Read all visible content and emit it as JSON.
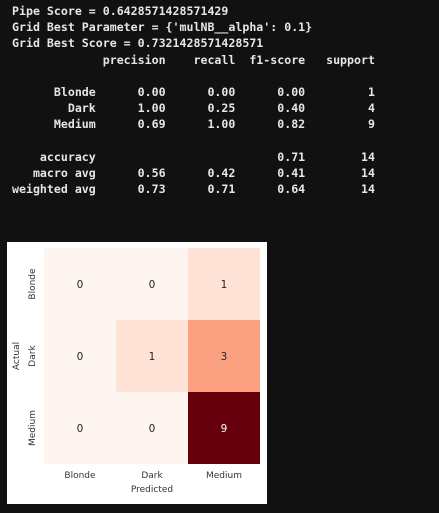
{
  "output": {
    "pipe_score": "Pipe Score = 0.6428571428571429",
    "grid_best_param": "Grid Best Parameter = {'mulNB__alpha': 0.1}",
    "grid_best_score": "Grid Best Score = 0.7321428571428571"
  },
  "report": {
    "header": [
      "precision",
      "recall",
      "f1-score",
      "support"
    ],
    "rows": [
      {
        "label": "Blonde",
        "precision": "0.00",
        "recall": "0.00",
        "f1": "0.00",
        "support": "1"
      },
      {
        "label": "Dark",
        "precision": "1.00",
        "recall": "0.25",
        "f1": "0.40",
        "support": "4"
      },
      {
        "label": "Medium",
        "precision": "0.69",
        "recall": "1.00",
        "f1": "0.82",
        "support": "9"
      }
    ],
    "summary": [
      {
        "label": "accuracy",
        "precision": "",
        "recall": "",
        "f1": "0.71",
        "support": "14"
      },
      {
        "label": "macro avg",
        "precision": "0.56",
        "recall": "0.42",
        "f1": "0.41",
        "support": "14"
      },
      {
        "label": "weighted avg",
        "precision": "0.73",
        "recall": "0.71",
        "f1": "0.64",
        "support": "14"
      }
    ]
  },
  "chart_data": {
    "type": "heatmap",
    "title": "",
    "xlabel": "Predicted",
    "ylabel": "Actual",
    "x_categories": [
      "Blonde",
      "Dark",
      "Medium"
    ],
    "y_categories": [
      "Blonde",
      "Dark",
      "Medium"
    ],
    "values": [
      [
        0,
        0,
        1
      ],
      [
        0,
        1,
        3
      ],
      [
        0,
        0,
        9
      ]
    ],
    "colormap": "Reds",
    "vmin": 0,
    "vmax": 9,
    "colorbar": false
  }
}
